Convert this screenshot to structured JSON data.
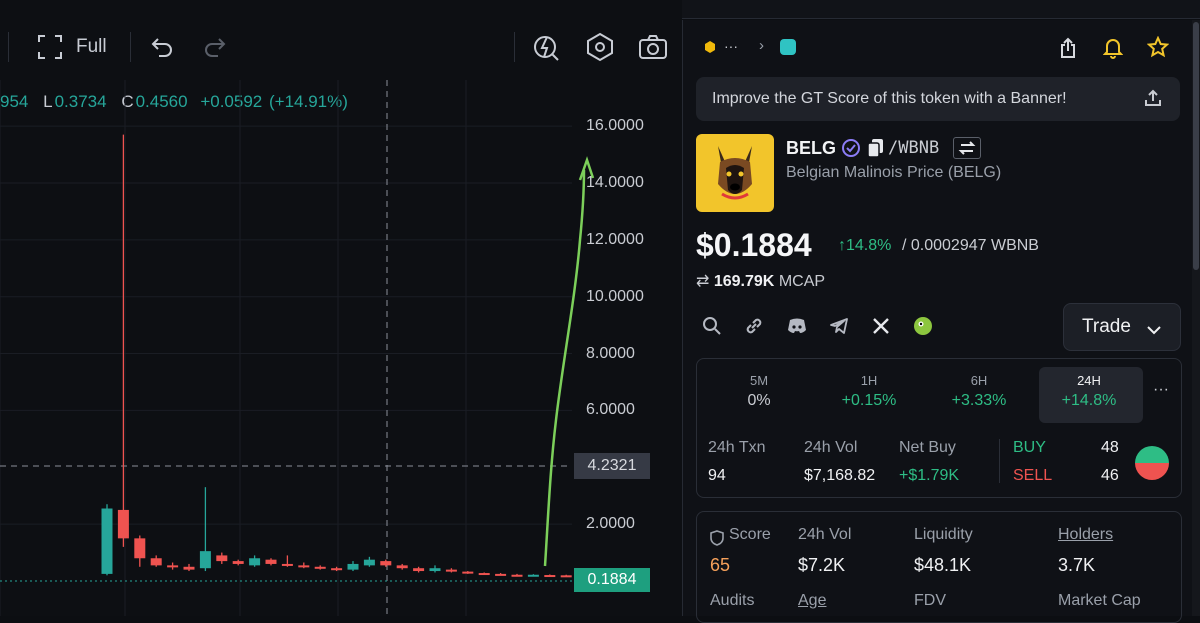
{
  "toolbar": {
    "fullscreen_label": "Full"
  },
  "ohlc": {
    "h_partial": "954",
    "l_prefix": "L",
    "l_value": "0.3734",
    "c_prefix": "C",
    "c_value": "0.4560",
    "change": "+0.0592",
    "change_pct": "(+14.91%)"
  },
  "price_axis": {
    "labels": [
      "16.0000",
      "14.0000",
      "12.0000",
      "10.0000",
      "8.0000",
      "6.0000",
      "2.0000"
    ],
    "crosshair_price": "4.2321",
    "last_price": "0.1884"
  },
  "header": {
    "breadcrumb_more": "···"
  },
  "banner": {
    "text": "Improve the GT Score of this token with a Banner!"
  },
  "token": {
    "symbol": "BELG",
    "quote": "/WBNB",
    "full_name": "Belgian Malinois Price (BELG)",
    "price": "$0.1884",
    "change": "↑14.8%",
    "quote_price": "/ 0.0002947 WBNB",
    "mcap_value": "169.79K",
    "mcap_label": "MCAP"
  },
  "trade_button": {
    "label": "Trade"
  },
  "timeframes": [
    {
      "label": "5M",
      "value": "0%",
      "color": "#c9ccd2"
    },
    {
      "label": "1H",
      "value": "+0.15%",
      "color": "#2ebd85"
    },
    {
      "label": "6H",
      "value": "+3.33%",
      "color": "#2ebd85"
    },
    {
      "label": "24H",
      "value": "+14.8%",
      "color": "#2ebd85"
    }
  ],
  "stats": {
    "txn_label": "24h Txn",
    "txn_value": "94",
    "vol_label": "24h Vol",
    "vol_value": "$7,168.82",
    "netbuy_label": "Net Buy",
    "netbuy_value": "+$1.79K",
    "buy_label": "BUY",
    "buy_value": "48",
    "sell_label": "SELL",
    "sell_value": "46"
  },
  "metrics": {
    "score_label": "Score",
    "score_value": "65",
    "vol_label": "24h Vol",
    "vol_value": "$7.2K",
    "liq_label": "Liquidity",
    "liq_value": "$48.1K",
    "holders_label": "Holders",
    "holders_value": "3.7K",
    "audits_label": "Audits",
    "age_label": "Age",
    "fdv_label": "FDV",
    "mcap_label": "Market Cap"
  },
  "colors": {
    "up": "#26a69a",
    "down": "#ef5350",
    "accent_green": "#2ebd85",
    "annotation": "#7ccf5a"
  },
  "chart_data": {
    "type": "candlestick",
    "candles": [
      {
        "o": 0.25,
        "h": 2.7,
        "l": 0.2,
        "c": 2.55
      },
      {
        "o": 2.5,
        "h": 15.7,
        "l": 1.2,
        "c": 1.5
      },
      {
        "o": 1.5,
        "h": 1.6,
        "l": 0.5,
        "c": 0.8
      },
      {
        "o": 0.8,
        "h": 0.9,
        "l": 0.5,
        "c": 0.55
      },
      {
        "o": 0.55,
        "h": 0.65,
        "l": 0.4,
        "c": 0.5
      },
      {
        "o": 0.5,
        "h": 0.6,
        "l": 0.35,
        "c": 0.4
      },
      {
        "o": 0.45,
        "h": 3.3,
        "l": 0.35,
        "c": 1.05
      },
      {
        "o": 0.9,
        "h": 1.0,
        "l": 0.6,
        "c": 0.7
      },
      {
        "o": 0.7,
        "h": 0.75,
        "l": 0.55,
        "c": 0.6
      },
      {
        "o": 0.55,
        "h": 0.9,
        "l": 0.5,
        "c": 0.8
      },
      {
        "o": 0.75,
        "h": 0.8,
        "l": 0.55,
        "c": 0.6
      },
      {
        "o": 0.6,
        "h": 0.9,
        "l": 0.5,
        "c": 0.55
      },
      {
        "o": 0.55,
        "h": 0.65,
        "l": 0.45,
        "c": 0.5
      },
      {
        "o": 0.5,
        "h": 0.55,
        "l": 0.4,
        "c": 0.45
      },
      {
        "o": 0.45,
        "h": 0.5,
        "l": 0.35,
        "c": 0.4
      },
      {
        "o": 0.4,
        "h": 0.7,
        "l": 0.35,
        "c": 0.6
      },
      {
        "o": 0.55,
        "h": 0.85,
        "l": 0.5,
        "c": 0.75
      },
      {
        "o": 0.7,
        "h": 0.75,
        "l": 0.5,
        "c": 0.55
      },
      {
        "o": 0.55,
        "h": 0.6,
        "l": 0.4,
        "c": 0.45
      },
      {
        "o": 0.45,
        "h": 0.5,
        "l": 0.3,
        "c": 0.35
      },
      {
        "o": 0.35,
        "h": 0.55,
        "l": 0.3,
        "c": 0.45
      },
      {
        "o": 0.4,
        "h": 0.45,
        "l": 0.3,
        "c": 0.33
      },
      {
        "o": 0.33,
        "h": 0.35,
        "l": 0.25,
        "c": 0.28
      },
      {
        "o": 0.28,
        "h": 0.3,
        "l": 0.22,
        "c": 0.25
      },
      {
        "o": 0.25,
        "h": 0.28,
        "l": 0.2,
        "c": 0.22
      },
      {
        "o": 0.22,
        "h": 0.25,
        "l": 0.18,
        "c": 0.2
      },
      {
        "o": 0.2,
        "h": 0.24,
        "l": 0.18,
        "c": 0.22
      },
      {
        "o": 0.21,
        "h": 0.23,
        "l": 0.18,
        "c": 0.2
      },
      {
        "o": 0.2,
        "h": 0.22,
        "l": 0.17,
        "c": 0.19
      }
    ],
    "y_ticks": [
      2,
      6,
      8,
      10,
      12,
      14,
      16
    ],
    "ylim": [
      0,
      17.2
    ]
  }
}
